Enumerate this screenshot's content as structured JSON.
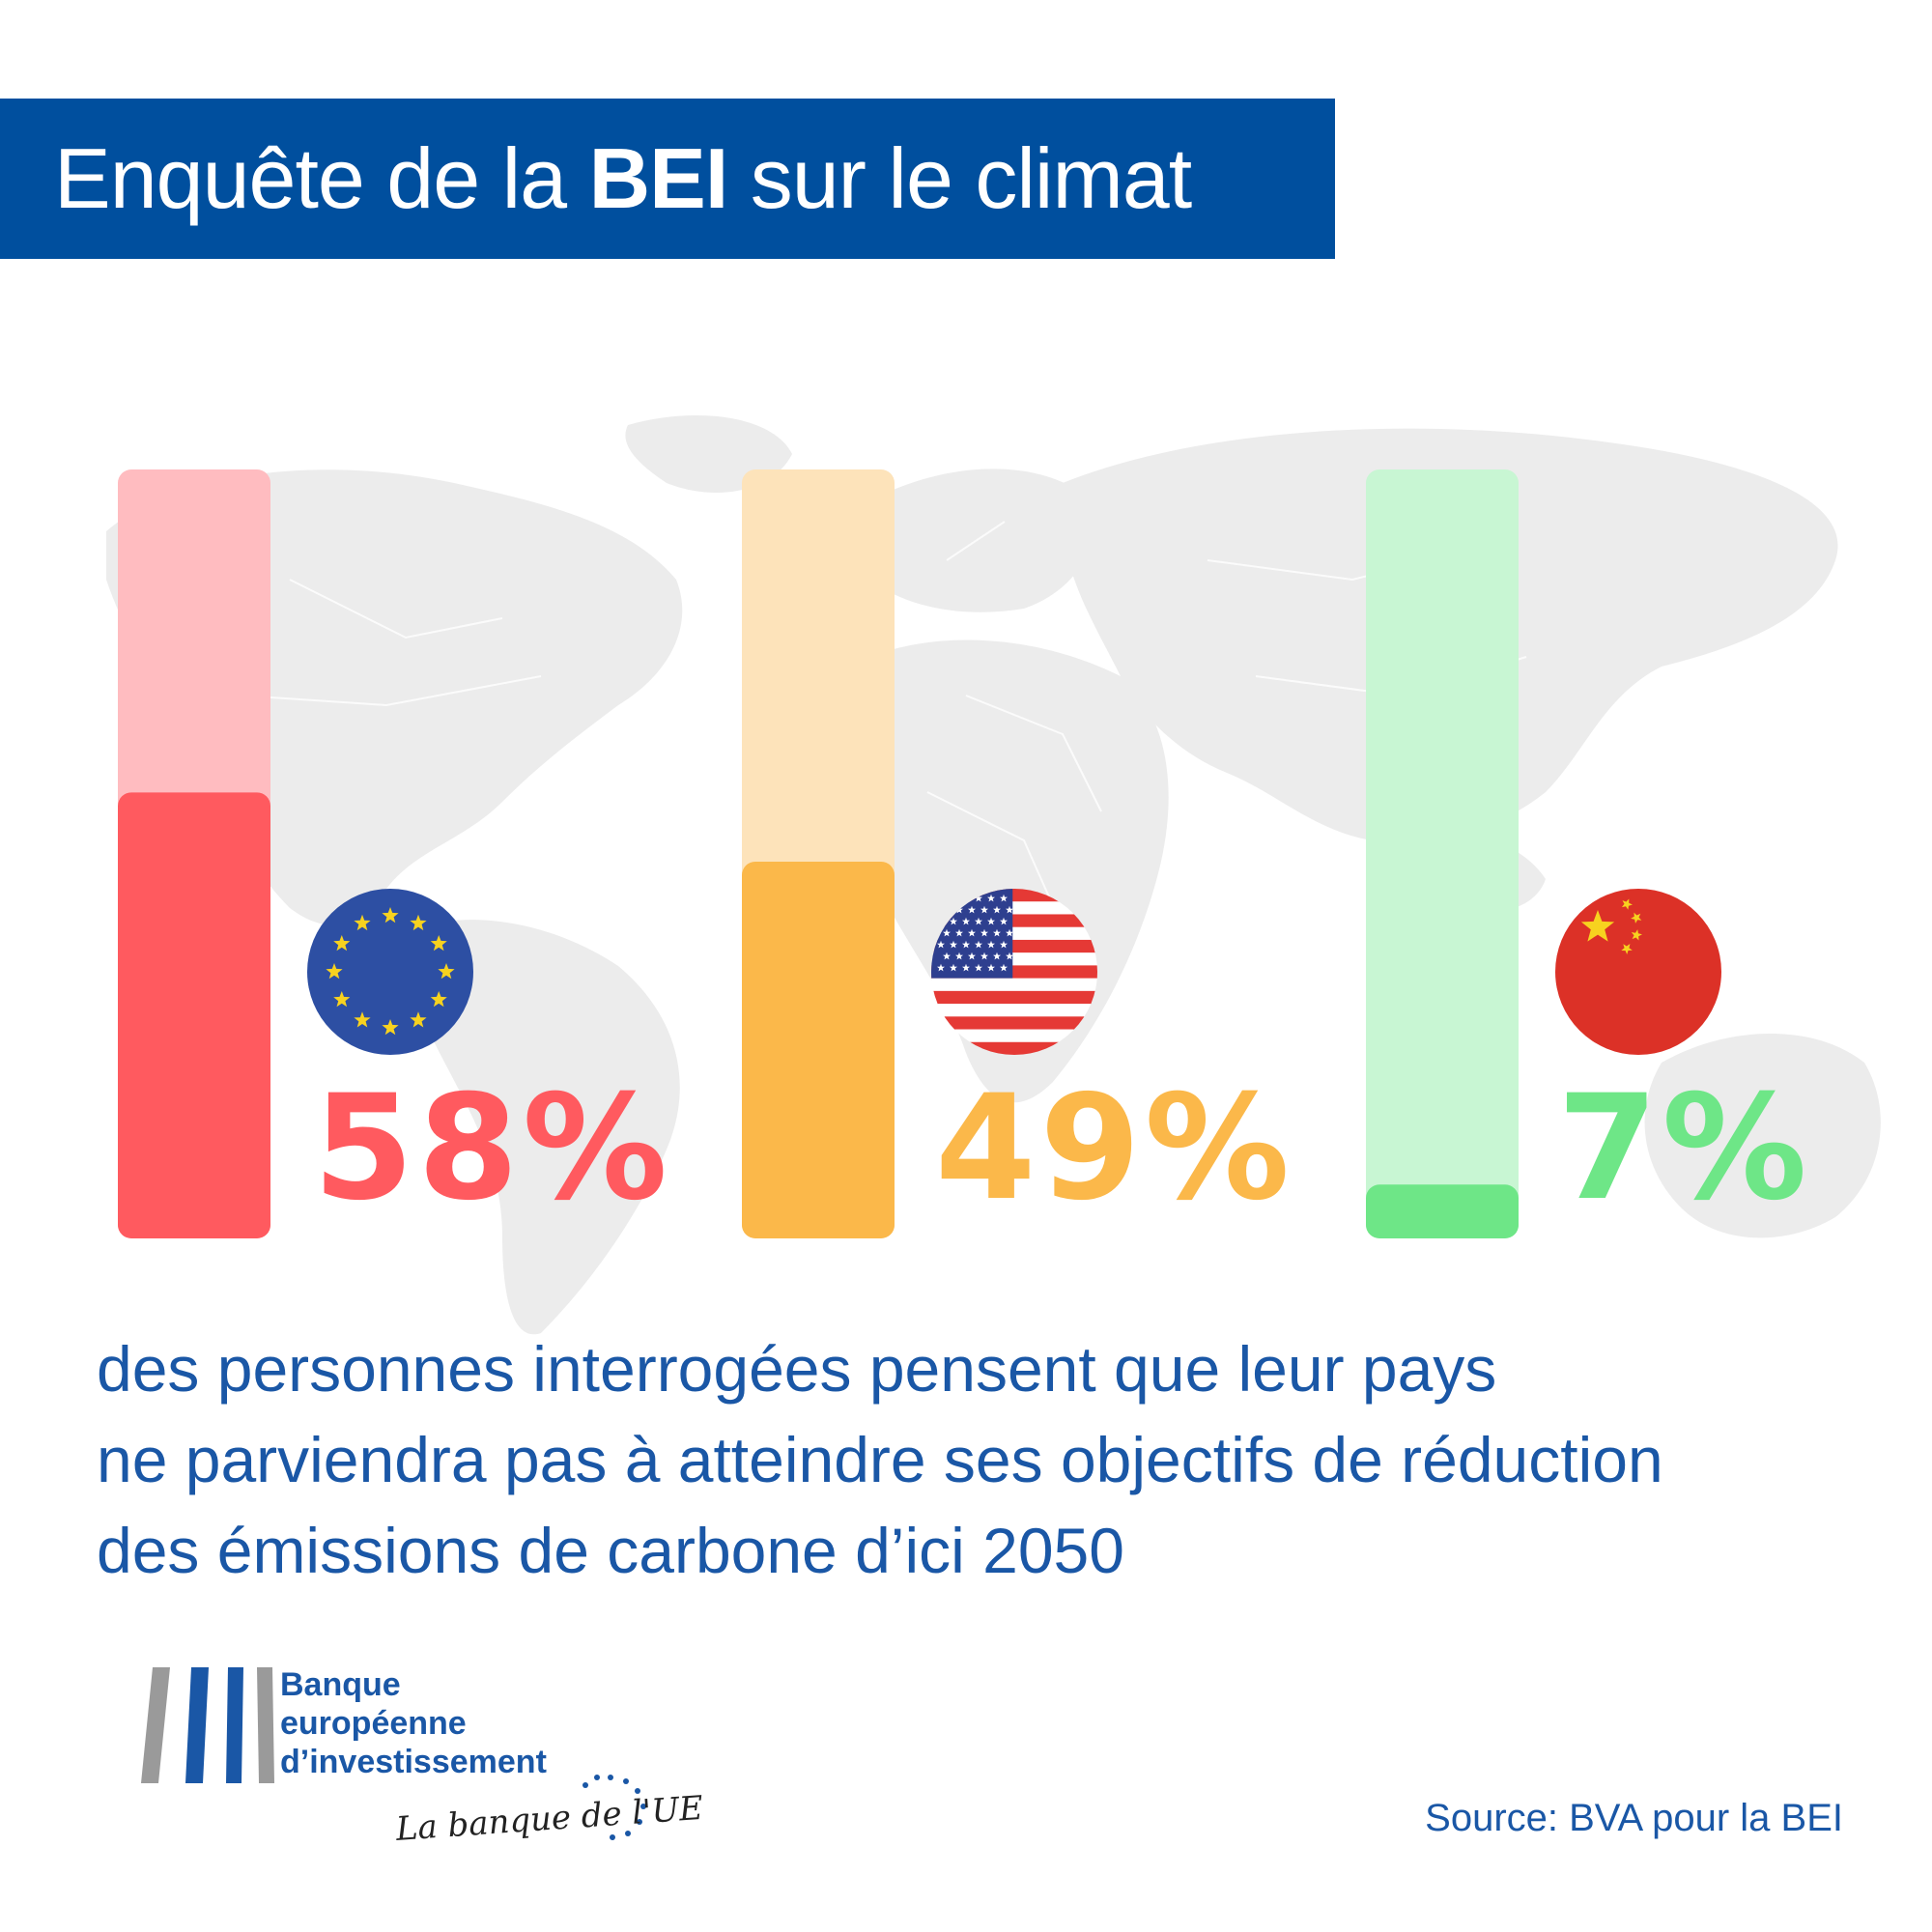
{
  "title": {
    "prefix": "Enquête de la ",
    "bold": "BEI",
    "suffix": " sur le climat"
  },
  "chart_data": {
    "type": "bar",
    "categories": [
      "EU",
      "USA",
      "China"
    ],
    "values": [
      58,
      49,
      7
    ],
    "value_labels": [
      "58%",
      "49%",
      "7%"
    ],
    "ylim": [
      0,
      100
    ],
    "flags": [
      "eu-flag-icon",
      "us-flag-icon",
      "china-flag-icon"
    ],
    "colors": {
      "bar": [
        "#ff5a5f",
        "#fbb84a",
        "#6ee687"
      ],
      "track": [
        "#ffbcc0",
        "#fde3ba",
        "#c8f6d3"
      ],
      "label": [
        "#ff5a5f",
        "#fbb84a",
        "#6ee687"
      ]
    }
  },
  "caption": [
    "des personnes interrogées pensent que leur pays",
    "ne parviendra pas à atteindre ses objectifs de réduction",
    "des émissions de carbone d’ici 2050"
  ],
  "logo": {
    "lines": [
      "Banque",
      "européenne",
      "d’investissement"
    ],
    "tagline": "La banque de l'UE"
  },
  "source": "Source: BVA pour la BEI",
  "colors": {
    "banner": "#004f9e",
    "text_blue": "#1a57a6",
    "map": "#ebebeb"
  }
}
